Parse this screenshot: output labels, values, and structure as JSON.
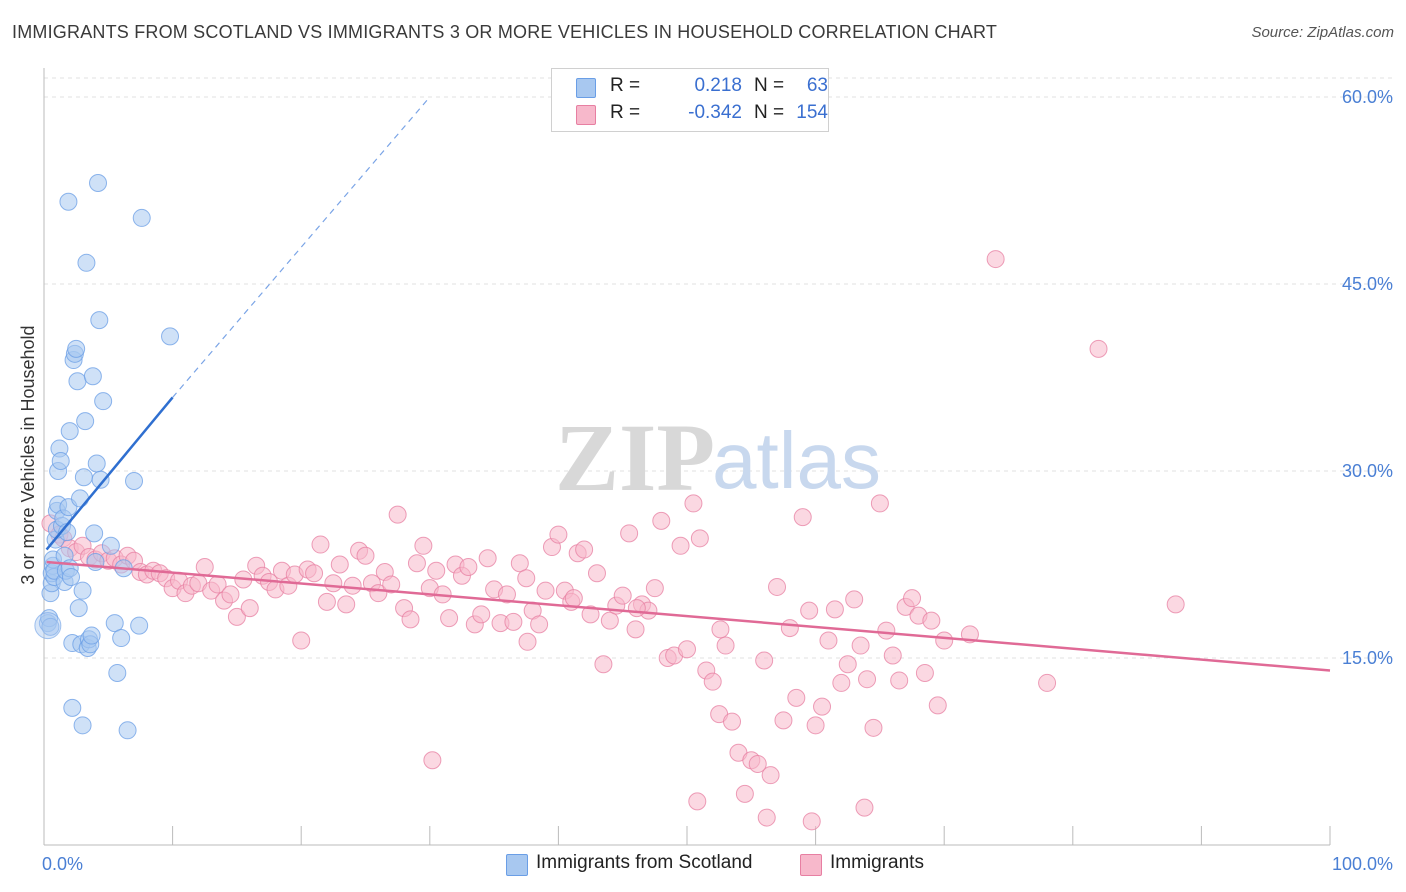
{
  "title": "IMMIGRANTS FROM SCOTLAND VS IMMIGRANTS 3 OR MORE VEHICLES IN HOUSEHOLD CORRELATION CHART",
  "source": "Source: ZipAtlas.com",
  "watermark": {
    "zip": "ZIP",
    "atlas": "atlas"
  },
  "legend_top": {
    "rows": [
      {
        "r_label": "R =",
        "r_value": "0.218",
        "n_label": "N =",
        "n_value": "63",
        "color": "#a8c8f0"
      },
      {
        "r_label": "R =",
        "r_value": "-0.342",
        "n_label": "N =",
        "n_value": "154",
        "color": "#f7b8cb"
      }
    ]
  },
  "legend_bottom": {
    "items": [
      {
        "label": "Immigrants from Scotland",
        "color": "#a8c8f0"
      },
      {
        "label": "Immigrants",
        "color": "#f7b8cb"
      }
    ]
  },
  "chart_data": {
    "type": "scatter",
    "xlabel": "",
    "ylabel": "3 or more Vehicles in Household",
    "xlim": [
      0,
      100
    ],
    "ylim": [
      0,
      60
    ],
    "x_tick_labels": [
      "0.0%",
      "100.0%"
    ],
    "y_tick_labels": [
      "15.0%",
      "30.0%",
      "45.0%",
      "60.0%"
    ],
    "y_ticks": [
      15,
      30,
      45,
      60
    ],
    "grid": true,
    "series": [
      {
        "name": "Immigrants from Scotland",
        "color": "#6a9ee6",
        "fill": "#a8c8f0",
        "trend": {
          "x0": 0.2,
          "y0": 23.7,
          "x1": 10,
          "y1": 35.9,
          "dashed_to": {
            "x": 30,
            "y": 60
          }
        },
        "points": [
          [
            0.3,
            17.8
          ],
          [
            0.4,
            18.2
          ],
          [
            0.5,
            17.5
          ],
          [
            0.5,
            20.2
          ],
          [
            0.6,
            21.0
          ],
          [
            0.6,
            21.8
          ],
          [
            0.7,
            22.4
          ],
          [
            0.7,
            22.9
          ],
          [
            0.8,
            21.5
          ],
          [
            0.8,
            22.0
          ],
          [
            0.9,
            24.5
          ],
          [
            1.0,
            25.3
          ],
          [
            1.0,
            26.8
          ],
          [
            1.1,
            27.3
          ],
          [
            1.1,
            30.0
          ],
          [
            1.2,
            31.8
          ],
          [
            1.3,
            30.8
          ],
          [
            1.4,
            25.6
          ],
          [
            1.5,
            26.2
          ],
          [
            1.6,
            23.2
          ],
          [
            1.6,
            21.1
          ],
          [
            1.7,
            22.0
          ],
          [
            1.8,
            25.1
          ],
          [
            1.9,
            27.1
          ],
          [
            2.0,
            33.2
          ],
          [
            2.0,
            22.2
          ],
          [
            2.1,
            21.5
          ],
          [
            2.2,
            16.2
          ],
          [
            2.2,
            11.0
          ],
          [
            2.3,
            38.9
          ],
          [
            2.4,
            39.4
          ],
          [
            2.5,
            39.8
          ],
          [
            2.6,
            37.2
          ],
          [
            2.7,
            19.0
          ],
          [
            2.8,
            27.8
          ],
          [
            2.9,
            16.1
          ],
          [
            3.0,
            20.4
          ],
          [
            3.0,
            9.6
          ],
          [
            3.1,
            29.5
          ],
          [
            3.2,
            34.0
          ],
          [
            3.3,
            46.7
          ],
          [
            3.4,
            15.8
          ],
          [
            3.5,
            16.5
          ],
          [
            3.6,
            16.1
          ],
          [
            3.7,
            16.8
          ],
          [
            3.8,
            37.6
          ],
          [
            3.9,
            25.0
          ],
          [
            4.0,
            22.7
          ],
          [
            4.1,
            30.6
          ],
          [
            4.2,
            53.1
          ],
          [
            4.3,
            42.1
          ],
          [
            4.4,
            29.3
          ],
          [
            4.6,
            35.6
          ],
          [
            5.2,
            24.0
          ],
          [
            5.5,
            17.8
          ],
          [
            5.7,
            13.8
          ],
          [
            6.0,
            16.6
          ],
          [
            6.2,
            22.2
          ],
          [
            6.5,
            9.2
          ],
          [
            7.0,
            29.2
          ],
          [
            7.4,
            17.6
          ],
          [
            7.6,
            50.3
          ],
          [
            9.8,
            40.8
          ],
          [
            1.9,
            51.6
          ]
        ]
      },
      {
        "name": "Immigrants",
        "color": "#e77fa2",
        "fill": "#f7b8cb",
        "trend": {
          "x0": 0.2,
          "y0": 22.7,
          "x1": 100,
          "y1": 14.0
        },
        "points": [
          [
            0.5,
            25.8
          ],
          [
            1.2,
            24.9
          ],
          [
            1.5,
            24.6
          ],
          [
            2.0,
            23.8
          ],
          [
            2.5,
            23.5
          ],
          [
            3.0,
            24.0
          ],
          [
            3.5,
            23.1
          ],
          [
            4.0,
            22.9
          ],
          [
            4.5,
            23.4
          ],
          [
            5.0,
            22.8
          ],
          [
            5.5,
            23.0
          ],
          [
            6.0,
            22.5
          ],
          [
            6.5,
            23.2
          ],
          [
            7.0,
            22.8
          ],
          [
            7.5,
            21.9
          ],
          [
            8.0,
            21.7
          ],
          [
            8.5,
            22.0
          ],
          [
            9.0,
            21.8
          ],
          [
            9.5,
            21.4
          ],
          [
            10.0,
            20.6
          ],
          [
            10.5,
            21.2
          ],
          [
            11.0,
            20.2
          ],
          [
            11.5,
            20.8
          ],
          [
            12.0,
            21.0
          ],
          [
            12.5,
            22.3
          ],
          [
            13.0,
            20.4
          ],
          [
            13.5,
            20.9
          ],
          [
            14.0,
            19.6
          ],
          [
            14.5,
            20.1
          ],
          [
            15.0,
            18.3
          ],
          [
            15.5,
            21.3
          ],
          [
            16.0,
            19.0
          ],
          [
            16.5,
            22.4
          ],
          [
            17.0,
            21.6
          ],
          [
            17.5,
            21.1
          ],
          [
            18.0,
            20.5
          ],
          [
            18.5,
            22.0
          ],
          [
            19.0,
            20.8
          ],
          [
            19.5,
            21.7
          ],
          [
            20.0,
            16.4
          ],
          [
            20.5,
            22.1
          ],
          [
            21.0,
            21.8
          ],
          [
            21.5,
            24.1
          ],
          [
            22.0,
            19.5
          ],
          [
            22.5,
            21.0
          ],
          [
            23.0,
            22.5
          ],
          [
            23.5,
            19.3
          ],
          [
            24.0,
            20.8
          ],
          [
            24.5,
            23.6
          ],
          [
            25.0,
            23.2
          ],
          [
            25.5,
            21.0
          ],
          [
            26.0,
            20.2
          ],
          [
            26.5,
            21.9
          ],
          [
            27.0,
            20.9
          ],
          [
            27.5,
            26.5
          ],
          [
            28.0,
            19.0
          ],
          [
            28.5,
            18.1
          ],
          [
            29.0,
            22.6
          ],
          [
            29.5,
            24.0
          ],
          [
            30.0,
            20.6
          ],
          [
            30.5,
            22.0
          ],
          [
            31.0,
            20.1
          ],
          [
            31.5,
            18.2
          ],
          [
            32.0,
            22.5
          ],
          [
            32.5,
            21.6
          ],
          [
            33.0,
            22.3
          ],
          [
            33.5,
            17.7
          ],
          [
            34.0,
            18.5
          ],
          [
            34.5,
            23.0
          ],
          [
            35.0,
            20.5
          ],
          [
            35.5,
            17.8
          ],
          [
            36.0,
            20.1
          ],
          [
            36.5,
            17.9
          ],
          [
            37.0,
            22.6
          ],
          [
            37.5,
            21.4
          ],
          [
            38.0,
            18.8
          ],
          [
            38.5,
            17.7
          ],
          [
            39.0,
            20.4
          ],
          [
            39.5,
            23.9
          ],
          [
            40.0,
            24.9
          ],
          [
            40.5,
            20.4
          ],
          [
            41.0,
            19.5
          ],
          [
            41.5,
            23.4
          ],
          [
            42.0,
            23.7
          ],
          [
            42.5,
            18.5
          ],
          [
            43.0,
            21.8
          ],
          [
            43.5,
            14.5
          ],
          [
            44.0,
            18.0
          ],
          [
            44.5,
            19.2
          ],
          [
            45.0,
            20.0
          ],
          [
            45.5,
            25.0
          ],
          [
            46.0,
            17.3
          ],
          [
            46.5,
            19.3
          ],
          [
            47.0,
            18.8
          ],
          [
            47.5,
            20.6
          ],
          [
            48.0,
            26.0
          ],
          [
            48.5,
            15.0
          ],
          [
            49.0,
            15.2
          ],
          [
            49.5,
            24.0
          ],
          [
            50.0,
            15.7
          ],
          [
            50.5,
            27.4
          ],
          [
            51.0,
            24.6
          ],
          [
            51.5,
            14.0
          ],
          [
            52.0,
            13.1
          ],
          [
            52.5,
            10.5
          ],
          [
            53.0,
            16.0
          ],
          [
            53.5,
            9.9
          ],
          [
            54.0,
            7.4
          ],
          [
            54.5,
            4.1
          ],
          [
            55.0,
            6.8
          ],
          [
            55.5,
            6.5
          ],
          [
            56.0,
            14.8
          ],
          [
            56.5,
            5.6
          ],
          [
            57.0,
            20.7
          ],
          [
            57.5,
            10.0
          ],
          [
            58.0,
            17.4
          ],
          [
            58.5,
            11.8
          ],
          [
            59.0,
            26.3
          ],
          [
            59.5,
            18.8
          ],
          [
            60.0,
            9.6
          ],
          [
            60.5,
            11.1
          ],
          [
            61.0,
            16.4
          ],
          [
            61.5,
            18.9
          ],
          [
            62.0,
            13.0
          ],
          [
            62.5,
            14.5
          ],
          [
            63.0,
            19.7
          ],
          [
            63.5,
            16.0
          ],
          [
            64.0,
            13.3
          ],
          [
            64.5,
            9.4
          ],
          [
            65.0,
            27.4
          ],
          [
            65.5,
            17.2
          ],
          [
            66.0,
            15.2
          ],
          [
            66.5,
            13.2
          ],
          [
            67.0,
            19.1
          ],
          [
            67.5,
            19.8
          ],
          [
            68.0,
            18.4
          ],
          [
            68.5,
            13.8
          ],
          [
            69.0,
            18.0
          ],
          [
            69.5,
            11.2
          ],
          [
            70.0,
            16.4
          ],
          [
            72.0,
            16.9
          ],
          [
            74.0,
            47.0
          ],
          [
            78.0,
            13.0
          ],
          [
            82.0,
            39.8
          ],
          [
            88.0,
            19.3
          ],
          [
            30.2,
            6.8
          ],
          [
            50.8,
            3.5
          ],
          [
            56.2,
            2.2
          ],
          [
            59.7,
            1.9
          ],
          [
            63.8,
            3.0
          ],
          [
            41.2,
            19.8
          ],
          [
            46.1,
            19.0
          ],
          [
            52.6,
            17.3
          ],
          [
            37.6,
            16.3
          ]
        ]
      }
    ]
  }
}
